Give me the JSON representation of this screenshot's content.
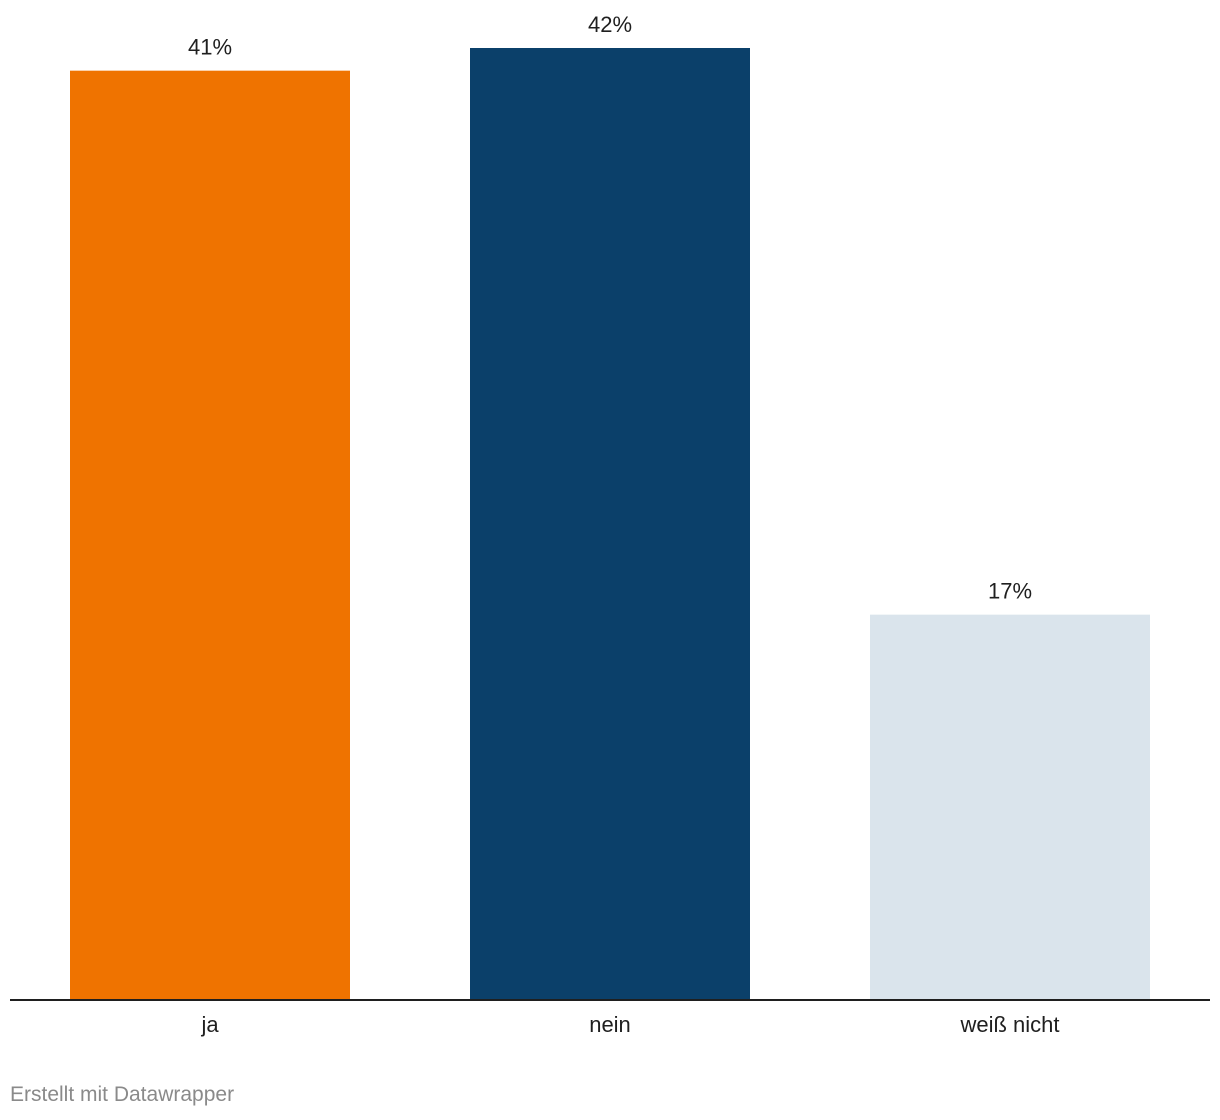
{
  "chart_data": {
    "type": "bar",
    "title": "",
    "xlabel": "",
    "ylabel": "",
    "categories": [
      "ja",
      "nein",
      "weiß nicht"
    ],
    "values": [
      41,
      42,
      17
    ],
    "value_labels": [
      "41%",
      "42%",
      "17%"
    ],
    "unit": "%",
    "ylim": [
      0,
      42
    ],
    "colors": [
      "#ef7300",
      "#0b406a",
      "#dae4ec"
    ],
    "grid": false,
    "legend": "none"
  },
  "footer": {
    "credit": "Erstellt mit Datawrapper"
  }
}
